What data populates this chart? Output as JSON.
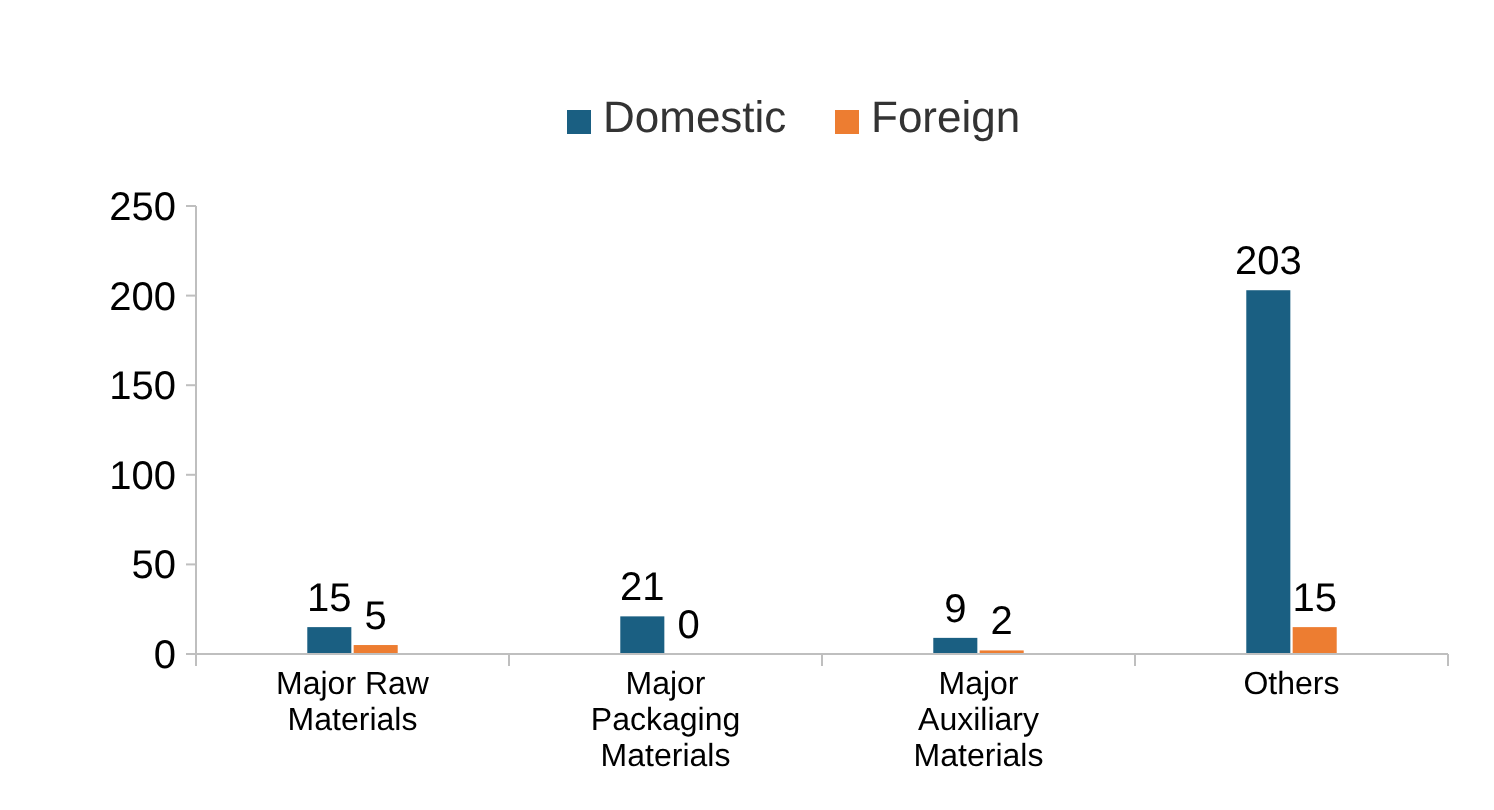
{
  "chart_data": {
    "type": "bar",
    "categories": [
      "Major Raw Materials",
      "Major Packaging Materials",
      "Major Auxiliary Materials",
      "Others"
    ],
    "series": [
      {
        "name": "Domestic",
        "color": "#1a5f82",
        "values": [
          15,
          21,
          9,
          203
        ]
      },
      {
        "name": "Foreign",
        "color": "#ed7d31",
        "values": [
          5,
          0,
          2,
          15
        ]
      }
    ],
    "ylim": [
      0,
      250
    ],
    "yticks": [
      0,
      50,
      100,
      150,
      200,
      250
    ],
    "grid": false,
    "legend": "top",
    "data_labels": true
  }
}
